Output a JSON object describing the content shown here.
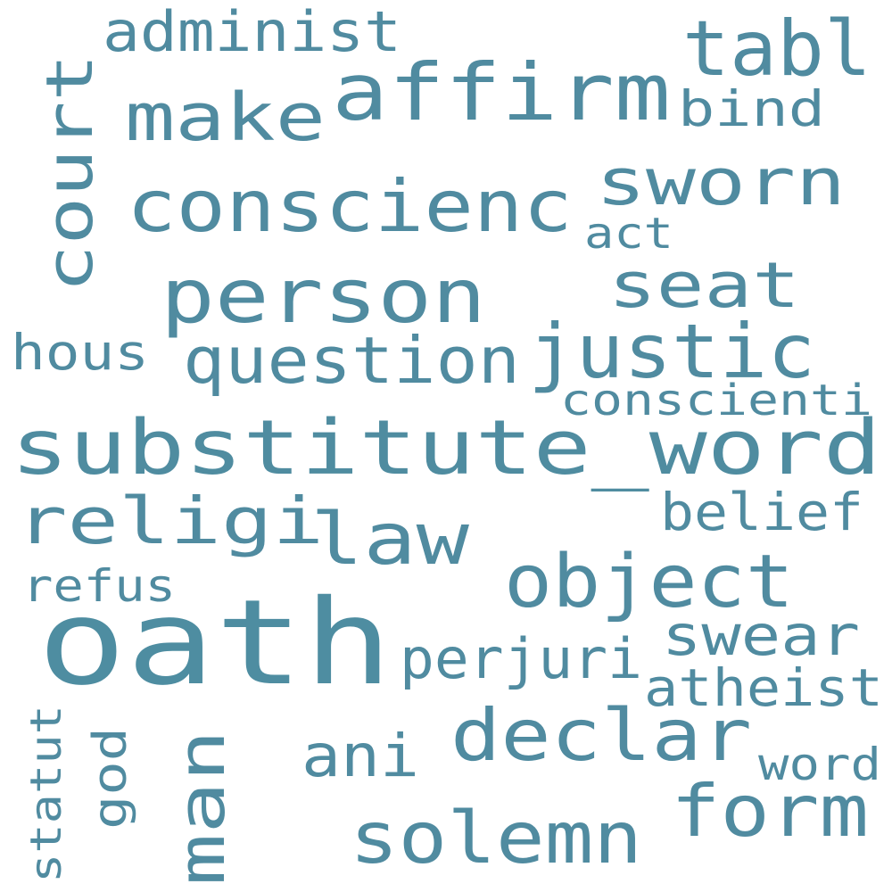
{
  "colors": {
    "primary": "#4e8da1",
    "background": "#ffffff"
  },
  "words": [
    {
      "text": "oath",
      "fill": "#4e8da1"
    },
    {
      "text": "substitute_word",
      "fill": "#4f8ca0"
    },
    {
      "text": "affirm",
      "fill": "#508ba0"
    },
    {
      "text": "conscienc",
      "fill": "#508ba0"
    },
    {
      "text": "person",
      "fill": "#508ba0"
    },
    {
      "text": "justic",
      "fill": "#508ba0"
    },
    {
      "text": "declar",
      "fill": "#508ba0"
    },
    {
      "text": "sworn",
      "fill": "#508ba0"
    },
    {
      "text": "religi",
      "fill": "#508ba0"
    },
    {
      "text": "object",
      "fill": "#508ba0"
    },
    {
      "text": "court",
      "fill": "#508ba0"
    },
    {
      "text": "make",
      "fill": "#508ba0"
    },
    {
      "text": "tabl",
      "fill": "#508ba0"
    },
    {
      "text": "seat",
      "fill": "#508ba0"
    },
    {
      "text": "law",
      "fill": "#508ba0"
    },
    {
      "text": "question",
      "fill": "#508ba0"
    },
    {
      "text": "man",
      "fill": "#508ba0"
    },
    {
      "text": "form",
      "fill": "#508ba0"
    },
    {
      "text": "solemn",
      "fill": "#508ba0"
    },
    {
      "text": "swear",
      "fill": "#508ba0"
    },
    {
      "text": "perjuri",
      "fill": "#508ba0"
    },
    {
      "text": "ani",
      "fill": "#508ba0"
    },
    {
      "text": "atheist",
      "fill": "#508ba0"
    },
    {
      "text": "belief",
      "fill": "#508ba0"
    },
    {
      "text": "conscienti",
      "fill": "#508ba0"
    },
    {
      "text": "administ",
      "fill": "#508ba0"
    },
    {
      "text": "bind",
      "fill": "#508ba0"
    },
    {
      "text": "hous",
      "fill": "#508ba0"
    },
    {
      "text": "refus",
      "fill": "#508ba0"
    },
    {
      "text": "act",
      "fill": "#508ba0"
    },
    {
      "text": "word",
      "fill": "#508ba0"
    },
    {
      "text": "god",
      "fill": "#508ba0"
    },
    {
      "text": "statut",
      "fill": "#508ba0"
    }
  ]
}
